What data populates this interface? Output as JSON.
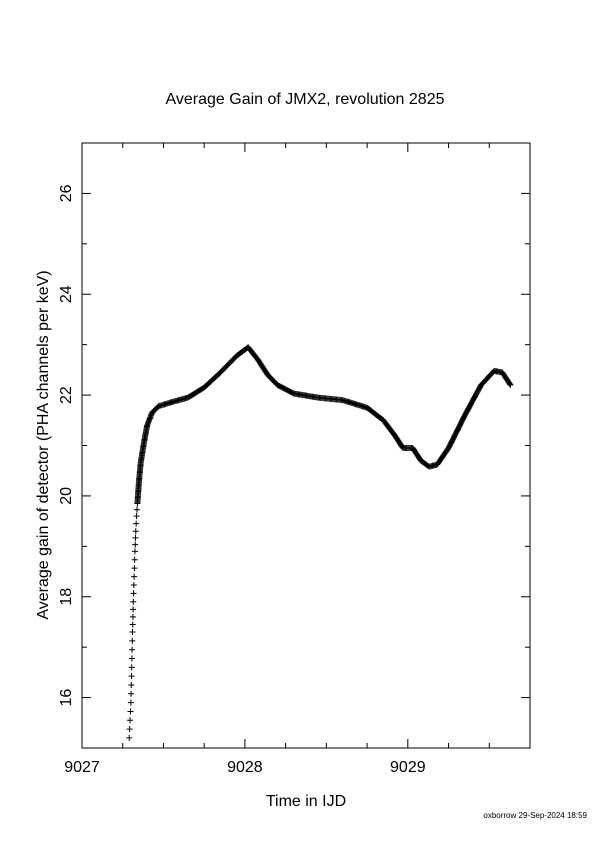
{
  "chart_data": {
    "type": "scatter",
    "title": "Average Gain of JMX2, revolution 2825",
    "xlabel": "Time in IJD",
    "ylabel": "Average gain of detector (PHA channels per keV)",
    "xlim": [
      9027,
      9029.75
    ],
    "ylim": [
      15,
      27
    ],
    "x_ticks": [
      9027,
      9028,
      9029
    ],
    "y_ticks": [
      16,
      18,
      20,
      22,
      24,
      26
    ],
    "grid": false,
    "legend": "none",
    "marker": "plus",
    "color": "#000000",
    "footer": "oxborrow 29-Sep-2024 18:59",
    "curve": [
      [
        9027.29,
        15.2
      ],
      [
        9027.3,
        15.9
      ],
      [
        9027.305,
        16.6
      ],
      [
        9027.31,
        17.3
      ],
      [
        9027.315,
        17.9
      ],
      [
        9027.32,
        18.4
      ],
      [
        9027.325,
        18.9
      ],
      [
        9027.33,
        19.3
      ],
      [
        9027.335,
        19.6
      ],
      [
        9027.34,
        19.85
      ],
      [
        9027.35,
        20.3
      ],
      [
        9027.36,
        20.65
      ],
      [
        9027.38,
        21.05
      ],
      [
        9027.4,
        21.4
      ],
      [
        9027.43,
        21.65
      ],
      [
        9027.47,
        21.78
      ],
      [
        9027.55,
        21.86
      ],
      [
        9027.65,
        21.95
      ],
      [
        9027.75,
        22.15
      ],
      [
        9027.85,
        22.45
      ],
      [
        9027.95,
        22.78
      ],
      [
        9028.02,
        22.95
      ],
      [
        9028.08,
        22.7
      ],
      [
        9028.14,
        22.4
      ],
      [
        9028.2,
        22.2
      ],
      [
        9028.3,
        22.03
      ],
      [
        9028.45,
        21.95
      ],
      [
        9028.6,
        21.9
      ],
      [
        9028.75,
        21.75
      ],
      [
        9028.85,
        21.5
      ],
      [
        9028.92,
        21.2
      ],
      [
        9028.97,
        20.95
      ],
      [
        9029.03,
        20.95
      ],
      [
        9029.08,
        20.7
      ],
      [
        9029.13,
        20.58
      ],
      [
        9029.18,
        20.62
      ],
      [
        9029.25,
        20.95
      ],
      [
        9029.35,
        21.6
      ],
      [
        9029.45,
        22.2
      ],
      [
        9029.53,
        22.48
      ],
      [
        9029.58,
        22.45
      ],
      [
        9029.63,
        22.2
      ]
    ]
  }
}
